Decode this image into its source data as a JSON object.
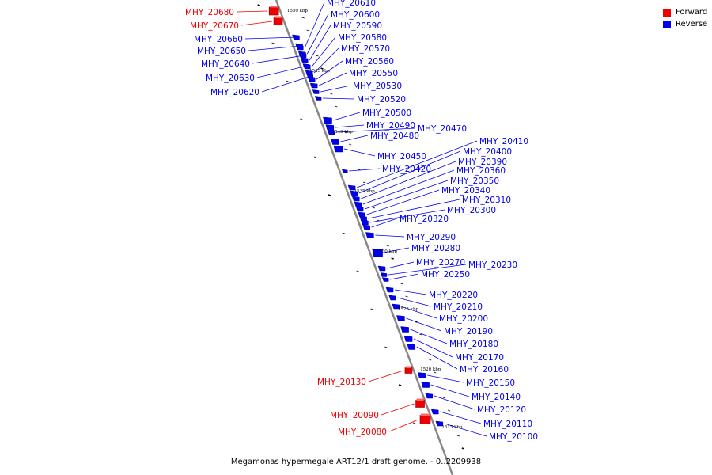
{
  "caption": "Megamonas hypermegale ART12/1 draft genome. - 0..2209938",
  "legend": [
    {
      "label": "Forward",
      "color": "#ee0000"
    },
    {
      "label": "Reverse",
      "color": "#0000ee"
    }
  ],
  "colors": {
    "forward": "#ee0000",
    "reverse": "#0000ee",
    "axis": "#888888"
  },
  "kbp_marks": [
    "1550 kbp",
    "1545 kbp",
    "1540 kbp",
    "1535 kbp",
    "1530 kbp",
    "1525 kbp",
    "1520 kbp",
    "1515 kbp"
  ],
  "genes": [
    {
      "id": "MHY_20680",
      "strand": "forward"
    },
    {
      "id": "MHY_20670",
      "strand": "forward"
    },
    {
      "id": "MHY_20660",
      "strand": "reverse"
    },
    {
      "id": "MHY_20650",
      "strand": "reverse"
    },
    {
      "id": "MHY_20640",
      "strand": "reverse"
    },
    {
      "id": "MHY_20630",
      "strand": "reverse"
    },
    {
      "id": "MHY_20620",
      "strand": "reverse"
    },
    {
      "id": "MHY_20610",
      "strand": "reverse"
    },
    {
      "id": "MHY_20600",
      "strand": "reverse"
    },
    {
      "id": "MHY_20590",
      "strand": "reverse"
    },
    {
      "id": "MHY_20580",
      "strand": "reverse"
    },
    {
      "id": "MHY_20570",
      "strand": "reverse"
    },
    {
      "id": "MHY_20560",
      "strand": "reverse"
    },
    {
      "id": "MHY_20550",
      "strand": "reverse"
    },
    {
      "id": "MHY_20530",
      "strand": "reverse"
    },
    {
      "id": "MHY_20520",
      "strand": "reverse"
    },
    {
      "id": "MHY_20500",
      "strand": "reverse"
    },
    {
      "id": "MHY_20490",
      "strand": "reverse"
    },
    {
      "id": "MHY_20470",
      "strand": "reverse"
    },
    {
      "id": "MHY_20480",
      "strand": "reverse"
    },
    {
      "id": "MHY_20450",
      "strand": "reverse"
    },
    {
      "id": "MHY_20420",
      "strand": "reverse"
    },
    {
      "id": "MHY_20410",
      "strand": "reverse"
    },
    {
      "id": "MHY_20400",
      "strand": "reverse"
    },
    {
      "id": "MHY_20390",
      "strand": "reverse"
    },
    {
      "id": "MHY_20360",
      "strand": "reverse"
    },
    {
      "id": "MHY_20350",
      "strand": "reverse"
    },
    {
      "id": "MHY_20340",
      "strand": "reverse"
    },
    {
      "id": "MHY_20310",
      "strand": "reverse"
    },
    {
      "id": "MHY_20300",
      "strand": "reverse"
    },
    {
      "id": "MHY_20320",
      "strand": "reverse"
    },
    {
      "id": "MHY_20290",
      "strand": "reverse"
    },
    {
      "id": "MHY_20280",
      "strand": "reverse"
    },
    {
      "id": "MHY_20270",
      "strand": "reverse"
    },
    {
      "id": "MHY_20230",
      "strand": "reverse"
    },
    {
      "id": "MHY_20250",
      "strand": "reverse"
    },
    {
      "id": "MHY_20220",
      "strand": "reverse"
    },
    {
      "id": "MHY_20210",
      "strand": "reverse"
    },
    {
      "id": "MHY_20200",
      "strand": "reverse"
    },
    {
      "id": "MHY_20190",
      "strand": "reverse"
    },
    {
      "id": "MHY_20180",
      "strand": "reverse"
    },
    {
      "id": "MHY_20170",
      "strand": "reverse"
    },
    {
      "id": "MHY_20160",
      "strand": "reverse"
    },
    {
      "id": "MHY_20130",
      "strand": "forward"
    },
    {
      "id": "MHY_20150",
      "strand": "reverse"
    },
    {
      "id": "MHY_20140",
      "strand": "reverse"
    },
    {
      "id": "MHY_20120",
      "strand": "reverse"
    },
    {
      "id": "MHY_20110",
      "strand": "reverse"
    },
    {
      "id": "MHY_20090",
      "strand": "forward"
    },
    {
      "id": "MHY_20080",
      "strand": "forward"
    },
    {
      "id": "MHY_20100",
      "strand": "reverse"
    }
  ]
}
